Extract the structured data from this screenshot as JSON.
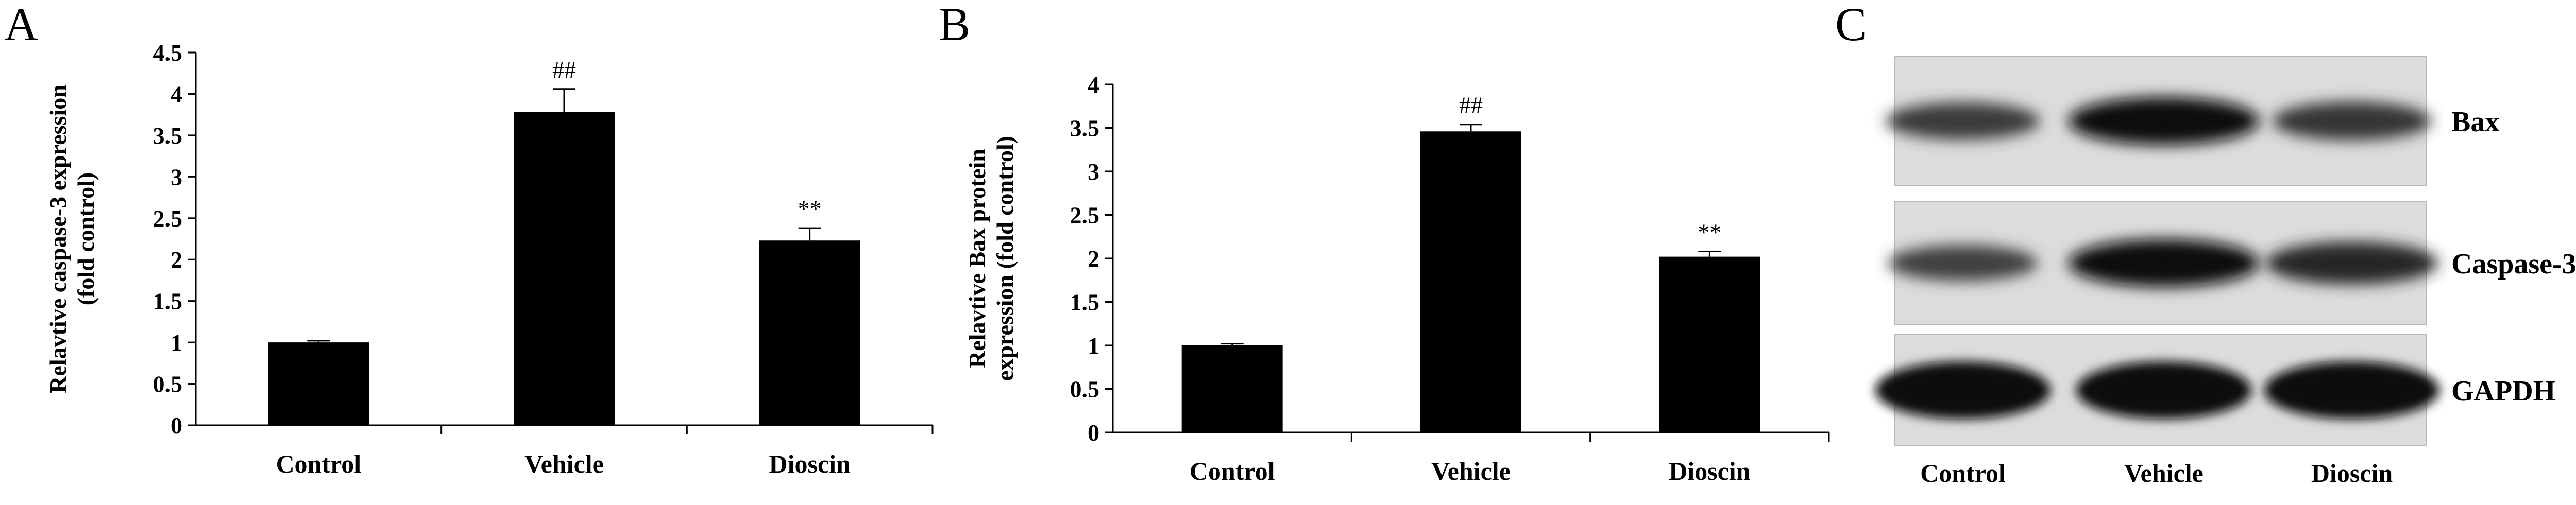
{
  "panels": {
    "A": {
      "letter": "A"
    },
    "B": {
      "letter": "B"
    },
    "C": {
      "letter": "C"
    }
  },
  "chart_data": [
    {
      "id": "A",
      "type": "bar",
      "categories": [
        "Control",
        "Vehicle",
        "Dioscin"
      ],
      "values": [
        1.0,
        3.78,
        2.23
      ],
      "errors": [
        0.02,
        0.28,
        0.15
      ],
      "annotations": [
        "",
        "##",
        "**"
      ],
      "ylabel_lines": [
        "Relavtive caspase-3 expression",
        "(fold control)"
      ],
      "ylim": [
        0,
        4.5
      ],
      "yticks": [
        0,
        0.5,
        1,
        1.5,
        2,
        2.5,
        3,
        3.5,
        4,
        4.5
      ],
      "ytick_labels": [
        "0",
        "0.5",
        "1",
        "1.5",
        "2",
        "2.5",
        "3",
        "3.5",
        "4",
        "4.5"
      ],
      "bar_color": "#000000",
      "grid": false
    },
    {
      "id": "B",
      "type": "bar",
      "categories": [
        "Control",
        "Vehicle",
        "Dioscin"
      ],
      "values": [
        1.0,
        3.46,
        2.02
      ],
      "errors": [
        0.02,
        0.08,
        0.06
      ],
      "annotations": [
        "",
        "##",
        "**"
      ],
      "ylabel_lines": [
        "Relavtive Bax protein",
        "expression  (fold control)"
      ],
      "ylim": [
        0,
        4
      ],
      "yticks": [
        0,
        0.5,
        1,
        1.5,
        2,
        2.5,
        3,
        3.5,
        4
      ],
      "ytick_labels": [
        "0",
        "0.5",
        "1",
        "1.5",
        "2",
        "2.5",
        "3",
        "3.5",
        "4"
      ],
      "bar_color": "#000000",
      "grid": false
    }
  ],
  "blot": {
    "rows": [
      {
        "label": "Bax",
        "intensities": [
          0.55,
          0.95,
          0.6
        ]
      },
      {
        "label": "Caspase-3",
        "intensities": [
          0.5,
          0.95,
          0.75
        ]
      },
      {
        "label": "GAPDH",
        "intensities": [
          1.0,
          1.0,
          1.0
        ]
      }
    ],
    "lanes": [
      "Control",
      "Vehicle",
      "Dioscin"
    ]
  }
}
